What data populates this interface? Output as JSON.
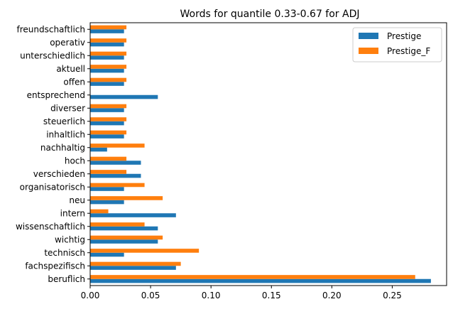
{
  "chart_data": {
    "type": "bar",
    "orientation": "horizontal",
    "title": "Words for quantile 0.33-0.67 for ADJ",
    "xlabel": "",
    "ylabel": "",
    "xlim": [
      0,
      0.295
    ],
    "xticks": [
      "0.00",
      "0.05",
      "0.10",
      "0.15",
      "0.20",
      "0.25"
    ],
    "xtick_values": [
      0,
      0.05,
      0.1,
      0.15,
      0.2,
      0.25
    ],
    "grid": false,
    "legend_position": "top-right",
    "categories": [
      "beruflich",
      "fachspezifisch",
      "technisch",
      "wichtig",
      "wissenschaftlich",
      "intern",
      "neu",
      "organisatorisch",
      "verschieden",
      "hoch",
      "nachhaltig",
      "inhaltlich",
      "steuerlich",
      "diverser",
      "entsprechend",
      "offen",
      "aktuell",
      "unterschiedlich",
      "operativ",
      "freundschaftlich"
    ],
    "series": [
      {
        "name": "Prestige",
        "color": "#1f77b4",
        "values": [
          0.282,
          0.071,
          0.028,
          0.056,
          0.056,
          0.071,
          0.028,
          0.028,
          0.042,
          0.042,
          0.014,
          0.028,
          0.028,
          0.028,
          0.056,
          0.028,
          0.028,
          0.028,
          0.028,
          0.028
        ]
      },
      {
        "name": "Prestige_F",
        "color": "#ff7f0e",
        "values": [
          0.269,
          0.075,
          0.09,
          0.06,
          0.045,
          0.015,
          0.06,
          0.045,
          0.03,
          0.03,
          0.045,
          0.03,
          0.03,
          0.03,
          0.0,
          0.03,
          0.03,
          0.03,
          0.03,
          0.03
        ]
      }
    ]
  }
}
